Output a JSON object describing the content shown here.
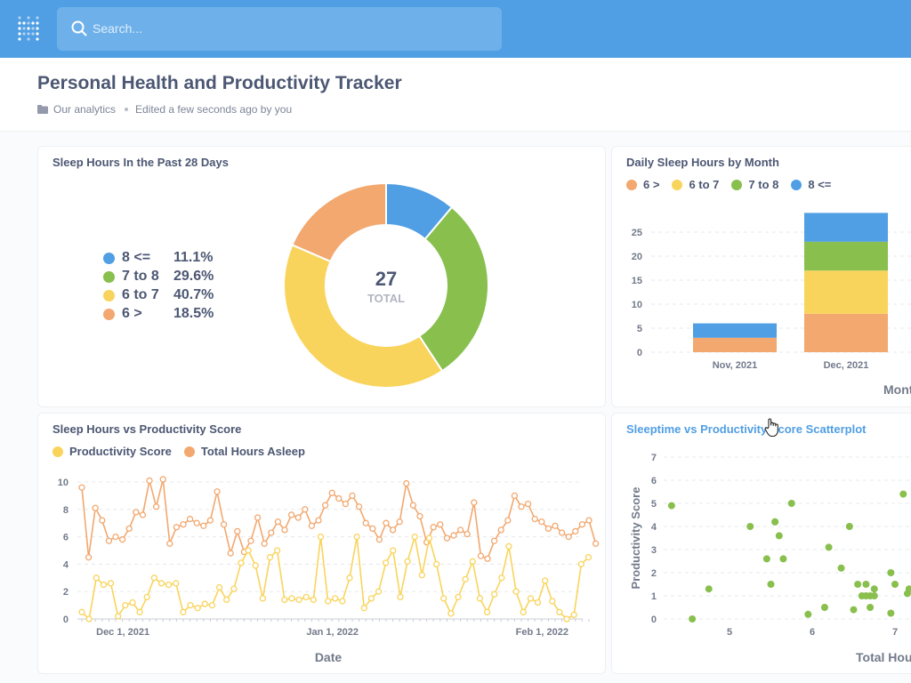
{
  "search": {
    "placeholder": "Search..."
  },
  "page": {
    "title": "Personal Health and Productivity Tracker",
    "collection": "Our analytics",
    "edited": "Edited a few seconds ago by you"
  },
  "colors": {
    "blue": "#509ee3",
    "green": "#88bf4d",
    "yellow": "#f9d45c",
    "orange": "#f2a86f",
    "topbar": "#509ee3"
  },
  "cards": {
    "donut": {
      "title": "Sleep Hours In the Past 28 Days",
      "total": "27",
      "total_label": "TOTAL",
      "legend": [
        {
          "label": "8 <=",
          "pct": "11.1%",
          "color": "#509ee3"
        },
        {
          "label": "7 to 8",
          "pct": "29.6%",
          "color": "#88bf4d"
        },
        {
          "label": "6 to 7",
          "pct": "40.7%",
          "color": "#f9d45c"
        },
        {
          "label": "6 >",
          "pct": "18.5%",
          "color": "#f2a86f"
        }
      ]
    },
    "stacked": {
      "title": "Daily Sleep Hours by Month",
      "legend": [
        {
          "label": "6 >",
          "color": "#f2a86f"
        },
        {
          "label": "6 to 7",
          "color": "#f9d45c"
        },
        {
          "label": "7 to 8",
          "color": "#88bf4d"
        },
        {
          "label": "8 <=",
          "color": "#509ee3"
        }
      ],
      "xlabel": "Month"
    },
    "line": {
      "title": "Sleep Hours vs Productivity Score",
      "legend": [
        {
          "label": "Productivity Score",
          "color": "#f9d45c"
        },
        {
          "label": "Total Hours Asleep",
          "color": "#f2a86f"
        }
      ],
      "xlabel": "Date"
    },
    "scatter": {
      "title": "Sleeptime vs Productivity Score Scatterplot",
      "xlabel": "Total Hours",
      "ylabel": "Productivity Score"
    }
  },
  "chart_data": [
    {
      "id": "donut",
      "type": "pie",
      "title": "Sleep Hours In the Past 28 Days",
      "categories": [
        "8 <=",
        "7 to 8",
        "6 to 7",
        "6 >"
      ],
      "values": [
        3,
        8,
        11,
        5
      ],
      "colors": [
        "#509ee3",
        "#88bf4d",
        "#f9d45c",
        "#f2a86f"
      ]
    },
    {
      "id": "stacked",
      "type": "bar",
      "title": "Daily Sleep Hours by Month",
      "categories": [
        "Nov, 2021",
        "Dec, 2021"
      ],
      "series": [
        {
          "name": "6 >",
          "values": [
            3,
            8
          ],
          "color": "#f2a86f"
        },
        {
          "name": "6 to 7",
          "values": [
            0,
            9
          ],
          "color": "#f9d45c"
        },
        {
          "name": "7 to 8",
          "values": [
            0,
            6
          ],
          "color": "#88bf4d"
        },
        {
          "name": "8 <=",
          "values": [
            3,
            6
          ],
          "color": "#509ee3"
        }
      ],
      "yticks": [
        0,
        5,
        10,
        15,
        20,
        25
      ],
      "ylim": [
        0,
        30
      ],
      "xlabel": "Month"
    },
    {
      "id": "line",
      "type": "line",
      "title": "Sleep Hours vs Productivity Score",
      "x_start": "2021-11-25",
      "xticks": [
        {
          "day": 6,
          "label": "Dec 1, 2021"
        },
        {
          "day": 37,
          "label": "Jan 1, 2022"
        },
        {
          "day": 68,
          "label": "Feb 1, 2022"
        }
      ],
      "yticks": [
        0,
        2,
        4,
        6,
        8,
        10
      ],
      "ylim": [
        0,
        10
      ],
      "xlabel": "Date",
      "series": [
        {
          "name": "Total Hours Asleep",
          "color": "#f2a86f",
          "values": [
            9.6,
            4.5,
            8.1,
            7.2,
            5.7,
            6.0,
            5.8,
            6.6,
            7.8,
            7.6,
            10.1,
            8.2,
            10.2,
            5.5,
            6.7,
            6.9,
            7.3,
            7.0,
            6.8,
            7.2,
            9.3,
            6.9,
            4.8,
            6.4,
            4.9,
            5.7,
            7.4,
            5.5,
            6.3,
            7.1,
            6.5,
            7.6,
            7.4,
            8.0,
            6.8,
            7.2,
            8.3,
            9.2,
            8.8,
            8.4,
            9.0,
            8.2,
            7.0,
            6.6,
            5.8,
            7.0,
            6.5,
            7.1,
            9.9,
            8.3,
            7.5,
            5.6,
            6.7,
            6.9,
            5.9,
            6.1,
            6.5,
            6.2,
            8.5,
            4.6,
            4.4,
            5.7,
            6.5,
            7.2,
            9.0,
            8.2,
            8.4,
            7.3,
            7.1,
            6.6,
            6.8,
            6.3,
            6.0,
            6.4,
            6.9,
            7.2,
            5.5
          ]
        },
        {
          "name": "Productivity Score",
          "color": "#f9d45c",
          "values": [
            0.5,
            0.0,
            3.0,
            2.5,
            2.6,
            0.2,
            1.0,
            1.2,
            0.5,
            1.6,
            3.0,
            2.6,
            2.5,
            2.6,
            0.5,
            1.0,
            0.8,
            1.1,
            1.0,
            2.3,
            1.4,
            2.2,
            4.1,
            5.0,
            3.9,
            1.5,
            4.5,
            5.0,
            1.4,
            1.5,
            1.4,
            1.6,
            1.4,
            6.0,
            1.3,
            1.5,
            1.3,
            3.0,
            6.0,
            0.8,
            1.5,
            2.0,
            4.1,
            5.0,
            1.6,
            4.2,
            6.0,
            3.2,
            5.9,
            4.0,
            1.5,
            0.4,
            1.6,
            2.9,
            4.2,
            1.5,
            0.5,
            1.8,
            3.0,
            5.3,
            2.0,
            0.5,
            1.5,
            1.2,
            2.8,
            1.3,
            0.5,
            0.0,
            0.3,
            4.0,
            4.5
          ]
        }
      ]
    },
    {
      "id": "scatter",
      "type": "scatter",
      "title": "Sleeptime vs Productivity Score Scatterplot",
      "xlabel": "Total Hours",
      "ylabel": "Productivity Score",
      "xticks": [
        5,
        6,
        7
      ],
      "yticks": [
        0,
        1,
        2,
        3,
        4,
        5,
        6,
        7
      ],
      "ylim": [
        0,
        7
      ],
      "x": [
        4.3,
        4.55,
        4.75,
        5.25,
        5.45,
        5.5,
        5.55,
        5.6,
        5.55,
        5.65,
        5.75,
        5.95,
        6.15,
        6.2,
        6.35,
        6.45,
        6.5,
        6.55,
        6.6,
        6.65,
        6.65,
        6.7,
        6.7,
        6.75,
        6.75,
        6.95,
        6.95,
        7.0,
        7.1,
        7.15,
        7.17
      ],
      "y": [
        4.9,
        0.0,
        1.3,
        4.0,
        2.6,
        1.5,
        4.2,
        3.6,
        4.2,
        2.6,
        5.0,
        0.2,
        0.5,
        3.1,
        2.2,
        4.0,
        0.4,
        1.5,
        1.0,
        1.5,
        1.0,
        1.0,
        0.5,
        1.3,
        1.0,
        0.25,
        2.0,
        1.5,
        5.4,
        1.1,
        1.3
      ]
    }
  ]
}
